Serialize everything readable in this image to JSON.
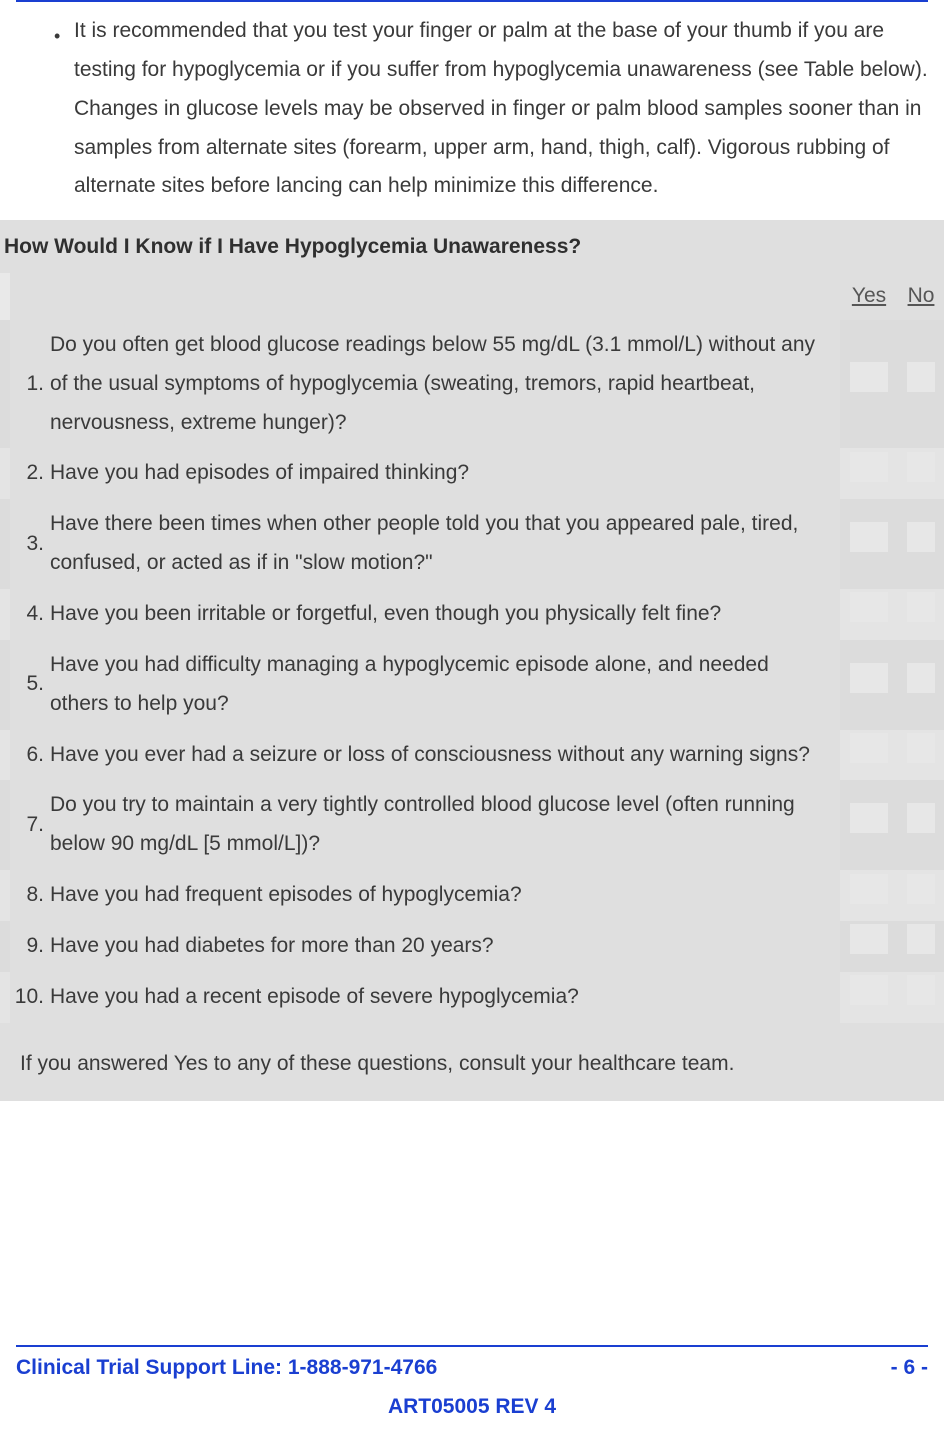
{
  "colors": {
    "rule": "#1a3fd1",
    "text": "#3a3a3a",
    "section_bg": "#dfdfdf",
    "box_bg": "#e7e7e7"
  },
  "bullet": {
    "text": "It is recommended that you test your finger or palm at the base of your thumb if you are testing for hypoglycemia or if you suffer from hypoglycemia unawareness (see Table below). Changes in glucose levels may be observed in finger or palm blood samples sooner than in samples from alternate sites (forearm, upper arm, hand, thigh, calf). Vigorous rubbing of alternate sites before lancing can help minimize this difference."
  },
  "section": {
    "title": "How Would I Know if I Have Hypoglycemia Unawareness?",
    "yes_label": "Yes",
    "no_label": "No",
    "questions": [
      "Do you often get blood glucose readings below 55 mg/dL (3.1 mmol/L) without any of the usual symptoms of hypoglycemia (sweating, tremors, rapid heartbeat, nervousness, extreme hunger)?",
      "Have you had episodes of impaired thinking?",
      "Have there been times when other people told you that you appeared pale, tired, confused, or acted as if in \"slow motion?\"",
      "Have you been irritable or forgetful, even though you physically felt fine?",
      "Have you had difficulty managing a hypoglycemic episode alone, and needed others to help you?",
      "Have you ever had a seizure or loss of consciousness without any warning signs?",
      "Do you try to maintain a very tightly controlled blood glucose level (often running below 90 mg/dL [5 mmol/L])?",
      "Have you had frequent episodes of hypoglycemia?",
      "Have you had diabetes for more than 20 years?",
      "Have you had a recent episode of severe hypoglycemia?"
    ],
    "consult": "If you answered Yes to any of these questions, consult your healthcare team."
  },
  "footer": {
    "left": "Clinical Trial Support Line:  1-888-971-4766",
    "right": "- 6 -",
    "center": "ART05005 REV 4"
  }
}
